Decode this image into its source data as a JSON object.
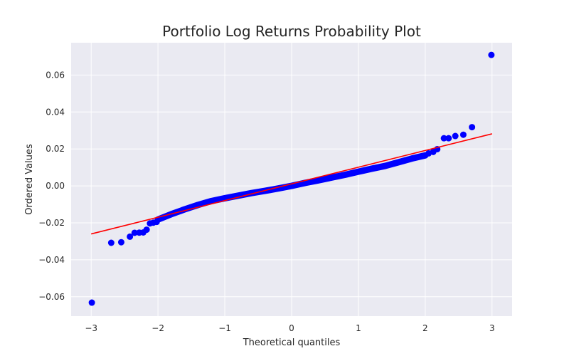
{
  "chart_data": {
    "type": "scatter",
    "title": "Portfolio Log Returns Probability Plot",
    "xlabel": "Theoretical quantiles",
    "ylabel": "Ordered Values",
    "xlim": [
      -3.3,
      3.3
    ],
    "ylim": [
      -0.0705,
      0.0775
    ],
    "x_ticks": [
      -3,
      -2,
      -1,
      0,
      1,
      2,
      3
    ],
    "x_tick_labels": [
      "−3",
      "−2",
      "−1",
      "0",
      "1",
      "2",
      "3"
    ],
    "y_ticks": [
      -0.06,
      -0.04,
      -0.02,
      0.0,
      0.02,
      0.04,
      0.06
    ],
    "y_tick_labels": [
      "−0.06",
      "−0.04",
      "−0.02",
      "0.00",
      "0.02",
      "0.04",
      "0.06"
    ],
    "grid": true,
    "background": "#eaeaf2",
    "point_color": "#0000ff",
    "line_color": "#ff0000",
    "fit_line": {
      "x": [
        -3,
        3
      ],
      "y": [
        -0.026,
        0.0282
      ]
    },
    "points": {
      "x": [
        -2.99,
        -2.7,
        -2.55,
        -2.42,
        -2.35,
        -2.28,
        -2.22,
        -2.17,
        -2.12,
        -2.07,
        -2.02,
        2.05,
        2.12,
        2.18,
        2.28,
        2.35,
        2.45,
        2.57,
        2.7,
        2.99
      ],
      "y": [
        -0.0632,
        -0.0308,
        -0.0305,
        -0.0275,
        -0.0254,
        -0.0253,
        -0.0252,
        -0.0237,
        -0.0203,
        -0.0199,
        -0.0195,
        0.0176,
        0.0184,
        0.0199,
        0.0258,
        0.0258,
        0.027,
        0.0277,
        0.0318,
        0.0709
      ]
    },
    "dense_band": {
      "x": [
        -2.0,
        -1.8,
        -1.6,
        -1.4,
        -1.2,
        -1.0,
        -0.8,
        -0.6,
        -0.4,
        -0.2,
        0.0,
        0.2,
        0.4,
        0.6,
        0.8,
        1.0,
        1.2,
        1.4,
        1.6,
        1.8,
        2.0
      ],
      "y": [
        -0.0182,
        -0.0153,
        -0.0127,
        -0.0103,
        -0.0082,
        -0.0067,
        -0.0053,
        -0.0039,
        -0.0027,
        -0.0014,
        0.0,
        0.0016,
        0.003,
        0.0045,
        0.006,
        0.0077,
        0.0093,
        0.0108,
        0.0128,
        0.0148,
        0.0165
      ]
    }
  }
}
